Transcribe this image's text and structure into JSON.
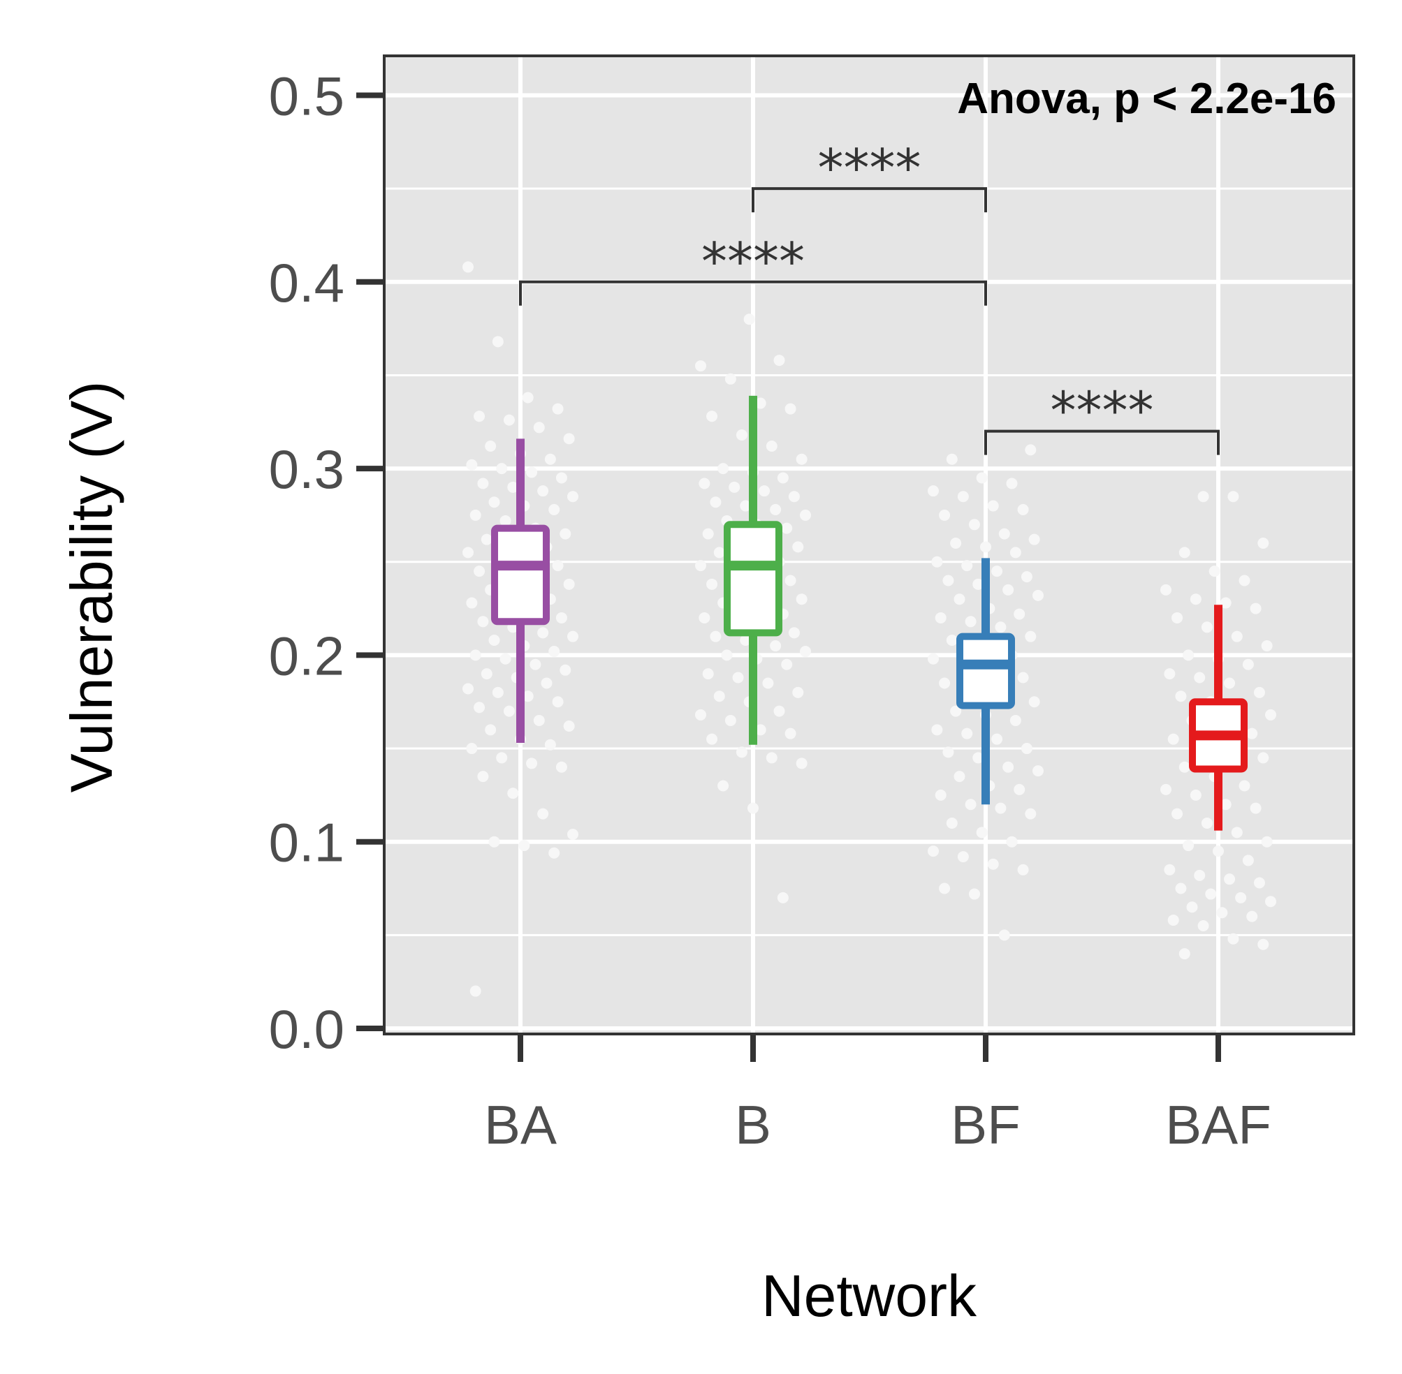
{
  "chart_data": {
    "type": "boxplot",
    "title": "",
    "xlabel": "Network",
    "ylabel": "Vulnerability (V)",
    "ylim": [
      0,
      0.52
    ],
    "y_ticks": [
      0.0,
      0.1,
      0.2,
      0.3,
      0.4,
      0.5
    ],
    "y_tick_labels": [
      "0.0",
      "0.1",
      "0.2",
      "0.3",
      "0.4",
      "0.5"
    ],
    "y_minor_ticks": [
      0.05,
      0.15,
      0.25,
      0.35,
      0.45
    ],
    "categories": [
      "BA",
      "B",
      "BF",
      "BAF"
    ],
    "grid": true,
    "legend": "none",
    "annotation": "Anova, p < 2.2e-16",
    "colors": {
      "BA": "#984ea3",
      "B": "#4daf4a",
      "BF": "#377eb8",
      "BAF": "#e41a1c",
      "panel": "#e5e5e5",
      "grid": "#ffffff",
      "jitter": "#f7f7f7",
      "bracket": "#333333"
    },
    "boxes": [
      {
        "category": "BA",
        "whisker_low": 0.153,
        "q1": 0.218,
        "median": 0.248,
        "q3": 0.268,
        "whisker_high": 0.316
      },
      {
        "category": "B",
        "whisker_low": 0.152,
        "q1": 0.212,
        "median": 0.248,
        "q3": 0.27,
        "whisker_high": 0.339
      },
      {
        "category": "BF",
        "whisker_low": 0.12,
        "q1": 0.173,
        "median": 0.195,
        "q3": 0.21,
        "whisker_high": 0.252
      },
      {
        "category": "BAF",
        "whisker_low": 0.106,
        "q1": 0.139,
        "median": 0.157,
        "q3": 0.175,
        "whisker_high": 0.227
      }
    ],
    "comparisons": [
      {
        "group1": "BA",
        "group2": "BF",
        "label": "****",
        "y": 0.4
      },
      {
        "group1": "B",
        "group2": "BF",
        "label": "****",
        "y": 0.45
      },
      {
        "group1": "BF",
        "group2": "BAF",
        "label": "****",
        "y": 0.32
      }
    ],
    "jitter_points": {
      "BA": [
        0.408,
        0.368,
        0.338,
        0.332,
        0.328,
        0.326,
        0.322,
        0.316,
        0.312,
        0.308,
        0.305,
        0.302,
        0.3,
        0.298,
        0.295,
        0.292,
        0.29,
        0.288,
        0.285,
        0.282,
        0.28,
        0.278,
        0.275,
        0.272,
        0.268,
        0.265,
        0.262,
        0.26,
        0.258,
        0.255,
        0.252,
        0.25,
        0.248,
        0.245,
        0.242,
        0.24,
        0.238,
        0.235,
        0.232,
        0.23,
        0.228,
        0.225,
        0.222,
        0.22,
        0.218,
        0.215,
        0.212,
        0.21,
        0.208,
        0.205,
        0.202,
        0.2,
        0.198,
        0.195,
        0.192,
        0.19,
        0.188,
        0.185,
        0.182,
        0.18,
        0.178,
        0.175,
        0.172,
        0.17,
        0.165,
        0.162,
        0.16,
        0.155,
        0.152,
        0.15,
        0.145,
        0.142,
        0.14,
        0.135,
        0.126,
        0.115,
        0.104,
        0.1,
        0.098,
        0.094,
        0.02
      ],
      "B": [
        0.38,
        0.358,
        0.355,
        0.348,
        0.335,
        0.332,
        0.328,
        0.318,
        0.312,
        0.305,
        0.3,
        0.298,
        0.295,
        0.292,
        0.29,
        0.288,
        0.285,
        0.282,
        0.28,
        0.278,
        0.275,
        0.272,
        0.27,
        0.268,
        0.265,
        0.262,
        0.26,
        0.258,
        0.255,
        0.252,
        0.25,
        0.248,
        0.245,
        0.242,
        0.24,
        0.238,
        0.235,
        0.232,
        0.23,
        0.228,
        0.225,
        0.222,
        0.22,
        0.218,
        0.215,
        0.212,
        0.21,
        0.208,
        0.205,
        0.202,
        0.2,
        0.198,
        0.195,
        0.19,
        0.188,
        0.185,
        0.18,
        0.178,
        0.175,
        0.17,
        0.168,
        0.165,
        0.16,
        0.158,
        0.155,
        0.148,
        0.145,
        0.142,
        0.13,
        0.118,
        0.07
      ],
      "BF": [
        0.31,
        0.305,
        0.295,
        0.292,
        0.288,
        0.285,
        0.28,
        0.278,
        0.275,
        0.27,
        0.265,
        0.262,
        0.26,
        0.258,
        0.255,
        0.25,
        0.248,
        0.245,
        0.242,
        0.24,
        0.238,
        0.235,
        0.232,
        0.23,
        0.225,
        0.222,
        0.22,
        0.218,
        0.215,
        0.21,
        0.208,
        0.205,
        0.2,
        0.198,
        0.195,
        0.19,
        0.188,
        0.185,
        0.18,
        0.178,
        0.175,
        0.17,
        0.168,
        0.165,
        0.16,
        0.158,
        0.155,
        0.15,
        0.148,
        0.145,
        0.14,
        0.138,
        0.135,
        0.13,
        0.128,
        0.125,
        0.12,
        0.118,
        0.115,
        0.11,
        0.105,
        0.1,
        0.095,
        0.092,
        0.088,
        0.085,
        0.075,
        0.072,
        0.05
      ],
      "BAF": [
        0.285,
        0.285,
        0.26,
        0.255,
        0.245,
        0.24,
        0.235,
        0.23,
        0.228,
        0.225,
        0.22,
        0.215,
        0.21,
        0.205,
        0.2,
        0.198,
        0.195,
        0.19,
        0.188,
        0.185,
        0.18,
        0.178,
        0.175,
        0.17,
        0.168,
        0.165,
        0.16,
        0.158,
        0.155,
        0.15,
        0.148,
        0.145,
        0.14,
        0.135,
        0.13,
        0.128,
        0.125,
        0.12,
        0.118,
        0.115,
        0.11,
        0.105,
        0.1,
        0.098,
        0.095,
        0.09,
        0.085,
        0.082,
        0.08,
        0.078,
        0.075,
        0.072,
        0.07,
        0.068,
        0.065,
        0.062,
        0.06,
        0.058,
        0.055,
        0.048,
        0.045,
        0.04
      ]
    }
  }
}
